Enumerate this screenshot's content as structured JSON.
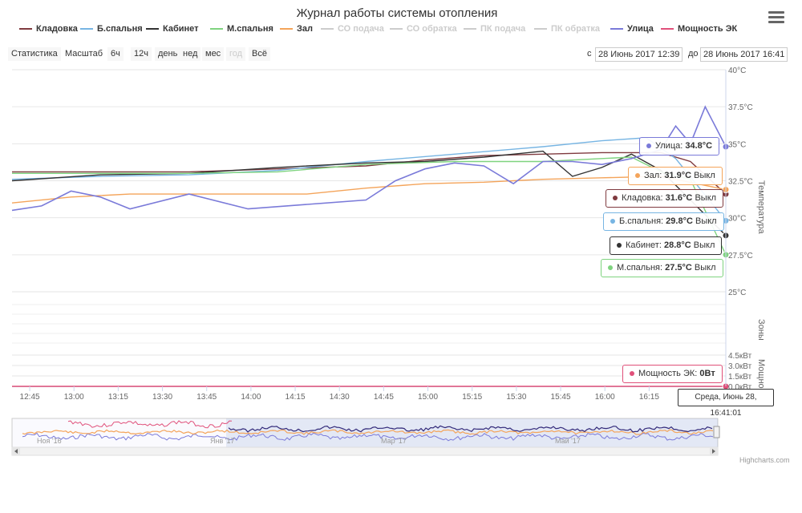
{
  "title": "Журнал работы системы отопления",
  "legend": [
    {
      "label": "Кладовка",
      "color": "#7f3a3f",
      "visible": true
    },
    {
      "label": "Б.спальня",
      "color": "#77b5e3",
      "visible": true
    },
    {
      "label": "Кабинет",
      "color": "#333333",
      "visible": true
    },
    {
      "label": "М.спальня",
      "color": "#7fd37f",
      "visible": true
    },
    {
      "label": "Зал",
      "color": "#f4a45a",
      "visible": true
    },
    {
      "label": "СО подача",
      "color": "#cccccc",
      "visible": false
    },
    {
      "label": "СО обратка",
      "color": "#cccccc",
      "visible": false
    },
    {
      "label": "ПК подача",
      "color": "#cccccc",
      "visible": false
    },
    {
      "label": "ПК обратка",
      "color": "#cccccc",
      "visible": false
    },
    {
      "label": "Улица",
      "color": "#7a7ad9",
      "visible": true
    },
    {
      "label": "Мощность ЭК",
      "color": "#e0507a",
      "visible": true
    }
  ],
  "range_selector": {
    "stats_label": "Статистика",
    "zoom_label": "Масштаб",
    "buttons": [
      "6ч",
      "12ч",
      "день",
      "нед",
      "мес",
      "год",
      "Всё"
    ],
    "from_label": "с",
    "from_value": "28 Июнь 2017 12:39",
    "to_label": "до",
    "to_value": "28 Июнь 2017 16:41"
  },
  "tooltips": [
    {
      "name": "Улица",
      "value": "34.8°C",
      "suffix": "",
      "color": "#7a7ad9"
    },
    {
      "name": "Зал",
      "value": "31.9°C",
      "suffix": "Выкл",
      "color": "#f4a45a"
    },
    {
      "name": "Кладовка",
      "value": "31.6°C",
      "suffix": "Выкл",
      "color": "#7f3a3f"
    },
    {
      "name": "Б.спальня",
      "value": "29.8°C",
      "suffix": "Выкл",
      "color": "#77b5e3"
    },
    {
      "name": "Кабинет",
      "value": "28.8°C",
      "suffix": "Выкл",
      "color": "#333333"
    },
    {
      "name": "М.спальня",
      "value": "27.5°C",
      "suffix": "Выкл",
      "color": "#7fd37f"
    },
    {
      "name": "Мощность ЭК",
      "value": "0Вт",
      "suffix": "",
      "color": "#e0507a"
    }
  ],
  "hover_label": "Среда, Июнь 28, 16:41:01",
  "credits": "Highcharts.com",
  "chart_data": {
    "type": "line",
    "title": "Журнал работы системы отопления",
    "x_ticks": [
      "12:45",
      "13:00",
      "13:15",
      "13:30",
      "13:45",
      "14:00",
      "14:15",
      "14:30",
      "14:45",
      "15:00",
      "15:15",
      "15:30",
      "15:45",
      "16:00",
      "16:15"
    ],
    "y_axes": [
      {
        "label": "Температура",
        "ticks": [
          "25°C",
          "27.5°C",
          "30°C",
          "32.5°C",
          "35°C",
          "37.5°C",
          "40°C"
        ],
        "min": 25,
        "max": 40
      },
      {
        "label": "Зоны",
        "ticks": []
      },
      {
        "label": "Мощность",
        "ticks": [
          "0.0кВт",
          "1.5кВт",
          "3.0кВт",
          "4.5кВт"
        ],
        "min": 0,
        "max": 4.5
      }
    ],
    "x_range": [
      "12:39",
      "16:41"
    ],
    "series": [
      {
        "name": "Кладовка",
        "color": "#7f3a3f",
        "points": [
          [
            0,
            33.1
          ],
          [
            30,
            33.1
          ],
          [
            60,
            33.1
          ],
          [
            90,
            33.3
          ],
          [
            120,
            33.5
          ],
          [
            140,
            33.9
          ],
          [
            160,
            34.2
          ],
          [
            180,
            34.3
          ],
          [
            200,
            34.4
          ],
          [
            220,
            34.4
          ],
          [
            230,
            33.8
          ],
          [
            242,
            31.6
          ]
        ]
      },
      {
        "name": "Б.спальня",
        "color": "#77b5e3",
        "points": [
          [
            0,
            32.6
          ],
          [
            30,
            32.8
          ],
          [
            60,
            32.9
          ],
          [
            90,
            33.2
          ],
          [
            120,
            33.8
          ],
          [
            150,
            34.3
          ],
          [
            180,
            34.8
          ],
          [
            200,
            35.2
          ],
          [
            215,
            35.4
          ],
          [
            225,
            34.0
          ],
          [
            242,
            29.8
          ]
        ]
      },
      {
        "name": "Кабинет",
        "color": "#333333",
        "points": [
          [
            0,
            32.5
          ],
          [
            30,
            32.9
          ],
          [
            60,
            33.0
          ],
          [
            90,
            33.4
          ],
          [
            120,
            33.7
          ],
          [
            140,
            33.8
          ],
          [
            160,
            34.1
          ],
          [
            180,
            34.5
          ],
          [
            190,
            32.8
          ],
          [
            200,
            33.4
          ],
          [
            210,
            34.3
          ],
          [
            220,
            33.2
          ],
          [
            242,
            28.8
          ]
        ]
      },
      {
        "name": "М.спальня",
        "color": "#7fd37f",
        "points": [
          [
            0,
            33.0
          ],
          [
            30,
            33.0
          ],
          [
            60,
            33.0
          ],
          [
            90,
            33.1
          ],
          [
            120,
            33.6
          ],
          [
            150,
            33.8
          ],
          [
            180,
            33.8
          ],
          [
            210,
            34.1
          ],
          [
            220,
            33.1
          ],
          [
            230,
            32.6
          ],
          [
            242,
            27.5
          ]
        ]
      },
      {
        "name": "Зал",
        "color": "#f4a45a",
        "points": [
          [
            0,
            31.0
          ],
          [
            20,
            31.4
          ],
          [
            40,
            31.6
          ],
          [
            60,
            31.6
          ],
          [
            80,
            31.6
          ],
          [
            100,
            31.6
          ],
          [
            120,
            32.0
          ],
          [
            140,
            32.3
          ],
          [
            160,
            32.4
          ],
          [
            180,
            32.6
          ],
          [
            200,
            32.7
          ],
          [
            220,
            32.8
          ],
          [
            242,
            31.9
          ]
        ]
      },
      {
        "name": "Улица",
        "color": "#7a7ad9",
        "points": [
          [
            0,
            30.5
          ],
          [
            10,
            30.8
          ],
          [
            20,
            31.8
          ],
          [
            30,
            31.4
          ],
          [
            40,
            30.6
          ],
          [
            60,
            31.6
          ],
          [
            80,
            30.6
          ],
          [
            100,
            30.9
          ],
          [
            120,
            31.2
          ],
          [
            130,
            32.5
          ],
          [
            140,
            33.3
          ],
          [
            150,
            33.7
          ],
          [
            160,
            33.5
          ],
          [
            170,
            32.3
          ],
          [
            180,
            33.8
          ],
          [
            190,
            33.8
          ],
          [
            200,
            33.6
          ],
          [
            210,
            34.0
          ],
          [
            220,
            34.6
          ],
          [
            225,
            36.2
          ],
          [
            230,
            35.0
          ],
          [
            235,
            37.5
          ],
          [
            242,
            34.8
          ]
        ]
      },
      {
        "name": "Мощность ЭК",
        "color": "#e0507a",
        "points": [
          [
            0,
            0
          ],
          [
            242,
            0
          ]
        ]
      }
    ],
    "navigator_ticks": [
      "Ноя '16",
      "Янв '17",
      "Мар '17",
      "Май '17"
    ]
  }
}
